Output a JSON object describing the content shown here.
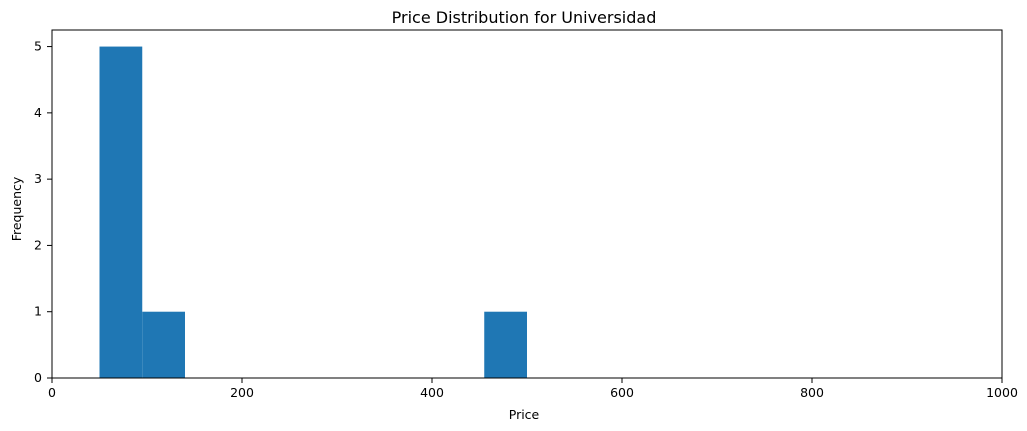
{
  "chart_data": {
    "type": "bar",
    "title": "Price Distribution for Universidad",
    "xlabel": "Price",
    "ylabel": "Frequency",
    "xlim": [
      0,
      1000
    ],
    "ylim": [
      0,
      5.25
    ],
    "x_ticks": [
      0,
      200,
      400,
      600,
      800,
      1000
    ],
    "y_ticks": [
      0,
      1,
      2,
      3,
      4,
      5
    ],
    "bins": [
      {
        "x0": 50,
        "x1": 95,
        "value": 5
      },
      {
        "x0": 95,
        "x1": 140,
        "value": 1
      },
      {
        "x0": 455,
        "x1": 500,
        "value": 1
      }
    ],
    "bar_color": "#1f77b4",
    "grid": false,
    "legend": "none"
  }
}
